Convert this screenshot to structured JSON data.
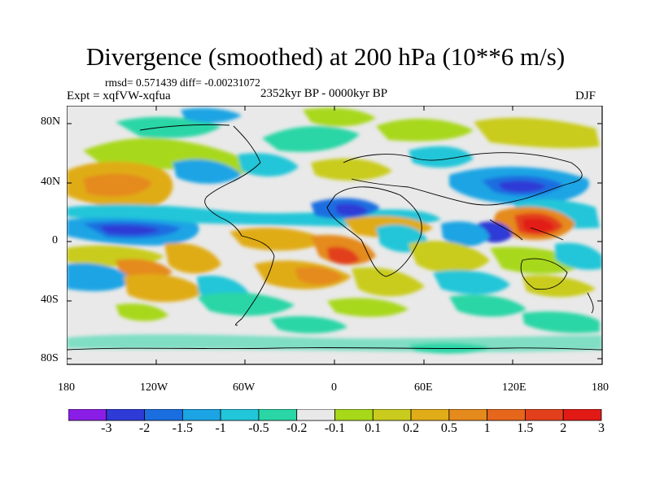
{
  "title": "Divergence (smoothed) at 200 hPa (10**6 m/s)",
  "stats": "rmsd= 0.571439 diff= -0.00231072",
  "period": "2352kyr BP - 0000kyr BP",
  "experiment": "Expt = xqfVW-xqfua",
  "season": "DJF",
  "axes": {
    "y_ticks": [
      "80N",
      "40N",
      "0",
      "40S",
      "80S"
    ],
    "x_ticks": [
      "180",
      "120W",
      "60W",
      "0",
      "60E",
      "120E",
      "180"
    ]
  },
  "colorbar": {
    "colors": [
      "#8a1ee6",
      "#2e3bd6",
      "#1a6ee0",
      "#1ca4e4",
      "#21c6d8",
      "#2bd6a6",
      "#e9e9e9",
      "#a8d81a",
      "#c9cc1e",
      "#e0ac18",
      "#e58a1c",
      "#e6661c",
      "#e2401c",
      "#e21a16"
    ],
    "labels": [
      "-3",
      "-2",
      "-1.5",
      "-1",
      "-0.5",
      "-0.2",
      "-0.1",
      "0.1",
      "0.2",
      "0.5",
      "1",
      "1.5",
      "2",
      "3"
    ]
  },
  "map_fields": {
    "background": "#e9e9e9",
    "positive_anomalies": [
      {
        "region": "North Pacific",
        "level": 1.5
      },
      {
        "region": "Equatorial West Africa",
        "level": 1.5
      },
      {
        "region": "Maritime Continent",
        "level": 3
      },
      {
        "region": "Atlantic 40N",
        "level": 0.5
      },
      {
        "region": "South Pacific",
        "level": 0.5
      },
      {
        "region": "Indian Ocean",
        "level": 1
      }
    ],
    "negative_anomalies": [
      {
        "region": "East Pacific ITCZ",
        "level": -2
      },
      {
        "region": "West Pacific 30N",
        "level": -2
      },
      {
        "region": "North Africa",
        "level": -1.5
      },
      {
        "region": "Philippines",
        "level": -2
      },
      {
        "region": "South Pacific subtropics",
        "level": -1
      }
    ]
  }
}
